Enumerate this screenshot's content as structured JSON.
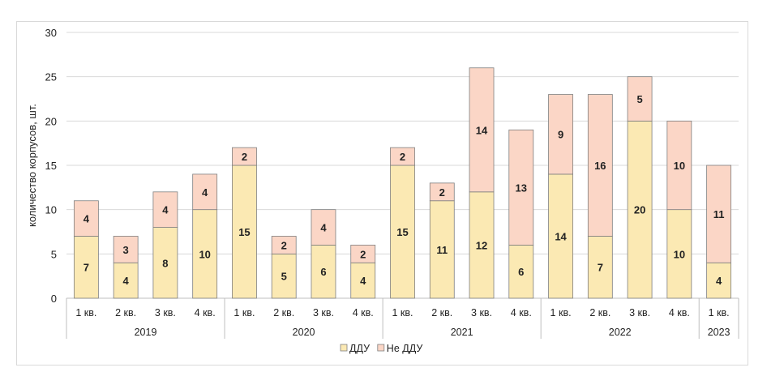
{
  "chart_data": {
    "type": "bar",
    "stacked": true,
    "ylabel": "количество корпусов, шт.",
    "ylim": [
      0,
      30
    ],
    "yticks": [
      "0",
      "5",
      "10",
      "15",
      "20",
      "25",
      "30"
    ],
    "grid": true,
    "legend_position": "bottom",
    "categories": [
      {
        "quarter": "1 кв.",
        "year": "2019"
      },
      {
        "quarter": "2 кв.",
        "year": "2019"
      },
      {
        "quarter": "3 кв.",
        "year": "2019"
      },
      {
        "quarter": "4 кв.",
        "year": "2019"
      },
      {
        "quarter": "1 кв.",
        "year": "2020"
      },
      {
        "quarter": "2 кв.",
        "year": "2020"
      },
      {
        "quarter": "3 кв.",
        "year": "2020"
      },
      {
        "quarter": "4 кв.",
        "year": "2020"
      },
      {
        "quarter": "1 кв.",
        "year": "2021"
      },
      {
        "quarter": "2 кв.",
        "year": "2021"
      },
      {
        "quarter": "3 кв.",
        "year": "2021"
      },
      {
        "quarter": "4 кв.",
        "year": "2021"
      },
      {
        "quarter": "1 кв.",
        "year": "2022"
      },
      {
        "quarter": "2 кв.",
        "year": "2022"
      },
      {
        "quarter": "3 кв.",
        "year": "2022"
      },
      {
        "quarter": "4 кв.",
        "year": "2022"
      },
      {
        "quarter": "1 кв.",
        "year": "2023"
      }
    ],
    "years": [
      "2019",
      "2020",
      "2021",
      "2022",
      "2023"
    ],
    "series": [
      {
        "name": "ДДУ",
        "color": "#fbe9b3",
        "values": [
          7,
          4,
          8,
          10,
          15,
          5,
          6,
          4,
          15,
          11,
          12,
          6,
          14,
          7,
          20,
          10,
          4
        ]
      },
      {
        "name": "Не ДДУ",
        "color": "#fbd6c6",
        "values": [
          4,
          3,
          4,
          4,
          2,
          2,
          4,
          2,
          2,
          2,
          14,
          13,
          9,
          16,
          5,
          10,
          11
        ]
      }
    ]
  }
}
